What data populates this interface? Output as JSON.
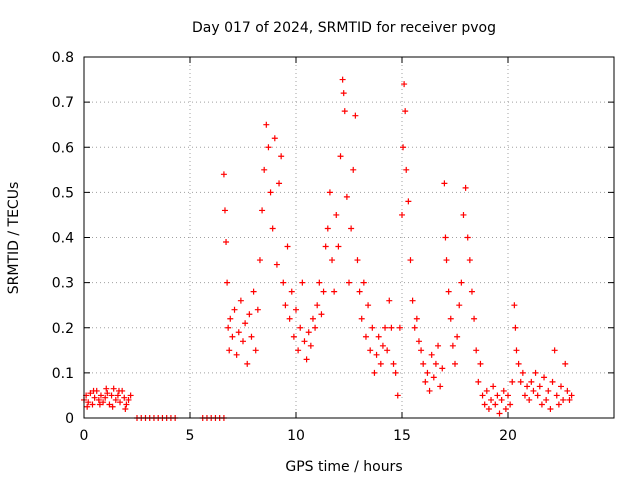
{
  "chart_data": {
    "type": "scatter",
    "title": "Day 017 of 2024, SRMTID for receiver pvog",
    "xlabel": "GPS time / hours",
    "ylabel": "SRMTID / TECUs",
    "xlim": [
      0,
      25
    ],
    "ylim": [
      0,
      0.8
    ],
    "xticks": [
      0,
      5,
      10,
      15,
      20
    ],
    "xtick_labels": [
      "0",
      "5",
      "10",
      "15",
      "20"
    ],
    "yticks": [
      0,
      0.1,
      0.2,
      0.3,
      0.4,
      0.5,
      0.6,
      0.7,
      0.8
    ],
    "ytick_labels": [
      "0",
      "0.1",
      "0.2",
      "0.3",
      "0.4",
      "0.5",
      "0.6",
      "0.7",
      "0.8"
    ],
    "grid": true,
    "marker": "+",
    "series": [
      {
        "name": "SRMTID",
        "color": "#ff0000",
        "points": [
          [
            0.0,
            0.04
          ],
          [
            0.1,
            0.05
          ],
          [
            0.2,
            0.035
          ],
          [
            0.3,
            0.055
          ],
          [
            0.4,
            0.03
          ],
          [
            0.5,
            0.045
          ],
          [
            0.6,
            0.06
          ],
          [
            0.7,
            0.04
          ],
          [
            0.8,
            0.05
          ],
          [
            0.9,
            0.035
          ],
          [
            1.0,
            0.045
          ],
          [
            1.1,
            0.055
          ],
          [
            1.2,
            0.03
          ],
          [
            1.3,
            0.05
          ],
          [
            1.4,
            0.065
          ],
          [
            1.5,
            0.04
          ],
          [
            1.6,
            0.05
          ],
          [
            1.7,
            0.035
          ],
          [
            1.8,
            0.06
          ],
          [
            1.9,
            0.045
          ],
          [
            2.0,
            0.03
          ],
          [
            2.1,
            0.04
          ],
          [
            2.2,
            0.05
          ],
          [
            0.15,
            0.025
          ],
          [
            0.45,
            0.06
          ],
          [
            0.75,
            0.03
          ],
          [
            1.05,
            0.065
          ],
          [
            1.35,
            0.025
          ],
          [
            1.65,
            0.06
          ],
          [
            1.95,
            0.02
          ],
          [
            2.5,
            0.0
          ],
          [
            2.7,
            0.0
          ],
          [
            2.9,
            0.0
          ],
          [
            3.1,
            0.0
          ],
          [
            3.3,
            0.0
          ],
          [
            3.5,
            0.0
          ],
          [
            3.7,
            0.0
          ],
          [
            3.9,
            0.0
          ],
          [
            4.1,
            0.0
          ],
          [
            4.3,
            0.0
          ],
          [
            5.6,
            0.0
          ],
          [
            5.8,
            0.0
          ],
          [
            6.0,
            0.0
          ],
          [
            6.2,
            0.0
          ],
          [
            6.4,
            0.0
          ],
          [
            6.6,
            0.0
          ],
          [
            6.6,
            0.54
          ],
          [
            6.65,
            0.46
          ],
          [
            6.7,
            0.39
          ],
          [
            6.75,
            0.3
          ],
          [
            6.8,
            0.2
          ],
          [
            6.85,
            0.15
          ],
          [
            6.9,
            0.22
          ],
          [
            7.0,
            0.18
          ],
          [
            7.1,
            0.24
          ],
          [
            7.2,
            0.14
          ],
          [
            7.3,
            0.19
          ],
          [
            7.4,
            0.26
          ],
          [
            7.5,
            0.17
          ],
          [
            7.6,
            0.21
          ],
          [
            7.7,
            0.12
          ],
          [
            7.8,
            0.23
          ],
          [
            7.9,
            0.18
          ],
          [
            8.0,
            0.28
          ],
          [
            8.1,
            0.15
          ],
          [
            8.2,
            0.24
          ],
          [
            8.3,
            0.35
          ],
          [
            8.4,
            0.46
          ],
          [
            8.5,
            0.55
          ],
          [
            8.6,
            0.65
          ],
          [
            8.7,
            0.6
          ],
          [
            8.8,
            0.5
          ],
          [
            8.9,
            0.42
          ],
          [
            9.0,
            0.62
          ],
          [
            9.1,
            0.34
          ],
          [
            9.2,
            0.52
          ],
          [
            9.3,
            0.58
          ],
          [
            9.4,
            0.3
          ],
          [
            9.5,
            0.25
          ],
          [
            9.6,
            0.38
          ],
          [
            9.7,
            0.22
          ],
          [
            9.8,
            0.28
          ],
          [
            9.9,
            0.18
          ],
          [
            10.0,
            0.24
          ],
          [
            10.1,
            0.15
          ],
          [
            10.2,
            0.2
          ],
          [
            10.3,
            0.3
          ],
          [
            10.4,
            0.17
          ],
          [
            10.5,
            0.13
          ],
          [
            10.6,
            0.19
          ],
          [
            10.7,
            0.16
          ],
          [
            10.8,
            0.22
          ],
          [
            10.9,
            0.2
          ],
          [
            11.0,
            0.25
          ],
          [
            11.1,
            0.3
          ],
          [
            11.2,
            0.23
          ],
          [
            11.3,
            0.28
          ],
          [
            11.4,
            0.38
          ],
          [
            11.5,
            0.42
          ],
          [
            11.6,
            0.5
          ],
          [
            11.7,
            0.35
          ],
          [
            11.8,
            0.28
          ],
          [
            11.9,
            0.45
          ],
          [
            12.0,
            0.38
          ],
          [
            12.1,
            0.58
          ],
          [
            12.2,
            0.75
          ],
          [
            12.25,
            0.72
          ],
          [
            12.3,
            0.68
          ],
          [
            12.4,
            0.49
          ],
          [
            12.5,
            0.3
          ],
          [
            12.6,
            0.42
          ],
          [
            12.7,
            0.55
          ],
          [
            12.8,
            0.67
          ],
          [
            12.9,
            0.35
          ],
          [
            13.0,
            0.28
          ],
          [
            13.1,
            0.22
          ],
          [
            13.2,
            0.3
          ],
          [
            13.3,
            0.18
          ],
          [
            13.4,
            0.25
          ],
          [
            13.5,
            0.15
          ],
          [
            13.6,
            0.2
          ],
          [
            13.7,
            0.1
          ],
          [
            13.8,
            0.14
          ],
          [
            13.9,
            0.18
          ],
          [
            14.0,
            0.12
          ],
          [
            14.1,
            0.16
          ],
          [
            14.2,
            0.2
          ],
          [
            14.3,
            0.15
          ],
          [
            14.4,
            0.26
          ],
          [
            14.5,
            0.2
          ],
          [
            14.6,
            0.12
          ],
          [
            14.7,
            0.1
          ],
          [
            14.8,
            0.05
          ],
          [
            14.9,
            0.2
          ],
          [
            15.0,
            0.45
          ],
          [
            15.05,
            0.6
          ],
          [
            15.1,
            0.74
          ],
          [
            15.15,
            0.68
          ],
          [
            15.2,
            0.55
          ],
          [
            15.3,
            0.48
          ],
          [
            15.4,
            0.35
          ],
          [
            15.5,
            0.26
          ],
          [
            15.6,
            0.2
          ],
          [
            15.7,
            0.22
          ],
          [
            15.8,
            0.17
          ],
          [
            15.9,
            0.15
          ],
          [
            16.0,
            0.12
          ],
          [
            16.1,
            0.08
          ],
          [
            16.2,
            0.1
          ],
          [
            16.3,
            0.06
          ],
          [
            16.4,
            0.14
          ],
          [
            16.5,
            0.09
          ],
          [
            16.6,
            0.12
          ],
          [
            16.7,
            0.16
          ],
          [
            16.8,
            0.07
          ],
          [
            16.9,
            0.11
          ],
          [
            17.0,
            0.52
          ],
          [
            17.05,
            0.4
          ],
          [
            17.1,
            0.35
          ],
          [
            17.2,
            0.28
          ],
          [
            17.3,
            0.22
          ],
          [
            17.4,
            0.16
          ],
          [
            17.5,
            0.12
          ],
          [
            17.6,
            0.18
          ],
          [
            17.7,
            0.25
          ],
          [
            17.8,
            0.3
          ],
          [
            17.9,
            0.45
          ],
          [
            18.0,
            0.51
          ],
          [
            18.1,
            0.4
          ],
          [
            18.2,
            0.35
          ],
          [
            18.3,
            0.28
          ],
          [
            18.4,
            0.22
          ],
          [
            18.5,
            0.15
          ],
          [
            18.6,
            0.08
          ],
          [
            18.7,
            0.12
          ],
          [
            18.8,
            0.05
          ],
          [
            18.9,
            0.03
          ],
          [
            19.0,
            0.06
          ],
          [
            19.1,
            0.02
          ],
          [
            19.2,
            0.04
          ],
          [
            19.3,
            0.07
          ],
          [
            19.4,
            0.03
          ],
          [
            19.5,
            0.05
          ],
          [
            19.6,
            0.01
          ],
          [
            19.7,
            0.04
          ],
          [
            19.8,
            0.06
          ],
          [
            19.9,
            0.02
          ],
          [
            20.0,
            0.05
          ],
          [
            20.1,
            0.03
          ],
          [
            20.2,
            0.08
          ],
          [
            20.3,
            0.25
          ],
          [
            20.35,
            0.2
          ],
          [
            20.4,
            0.15
          ],
          [
            20.5,
            0.12
          ],
          [
            20.6,
            0.08
          ],
          [
            20.7,
            0.1
          ],
          [
            20.8,
            0.05
          ],
          [
            20.9,
            0.07
          ],
          [
            21.0,
            0.04
          ],
          [
            21.1,
            0.08
          ],
          [
            21.2,
            0.06
          ],
          [
            21.3,
            0.1
          ],
          [
            21.4,
            0.05
          ],
          [
            21.5,
            0.07
          ],
          [
            21.6,
            0.03
          ],
          [
            21.7,
            0.09
          ],
          [
            21.8,
            0.04
          ],
          [
            21.9,
            0.06
          ],
          [
            22.0,
            0.02
          ],
          [
            22.1,
            0.08
          ],
          [
            22.2,
            0.15
          ],
          [
            22.3,
            0.05
          ],
          [
            22.4,
            0.03
          ],
          [
            22.5,
            0.07
          ],
          [
            22.6,
            0.04
          ],
          [
            22.7,
            0.12
          ],
          [
            22.8,
            0.06
          ],
          [
            22.9,
            0.04
          ],
          [
            23.0,
            0.05
          ]
        ]
      }
    ]
  }
}
